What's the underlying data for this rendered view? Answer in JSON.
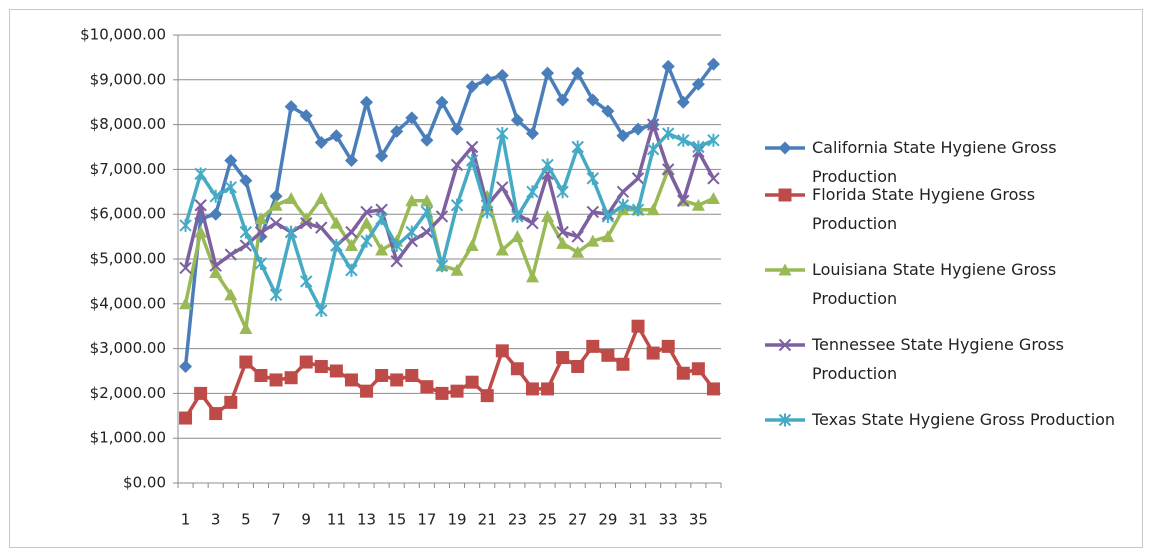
{
  "chart_data": {
    "type": "line",
    "categories": [
      "1",
      null,
      "3",
      null,
      "5",
      null,
      "7",
      null,
      "9",
      null,
      "11",
      null,
      "13",
      null,
      "15",
      null,
      "17",
      null,
      "19",
      null,
      "21",
      null,
      "23",
      null,
      "25",
      null,
      "27",
      null,
      "29",
      null,
      "31",
      null,
      "33",
      null,
      "35",
      null
    ],
    "ylim": [
      0,
      10000
    ],
    "yticks": [
      {
        "value": 0,
        "label": "$0.00"
      },
      {
        "value": 1000,
        "label": "$1,000.00"
      },
      {
        "value": 2000,
        "label": "$2,000.00"
      },
      {
        "value": 3000,
        "label": "$3,000.00"
      },
      {
        "value": 4000,
        "label": "$4,000.00"
      },
      {
        "value": 5000,
        "label": "$5,000.00"
      },
      {
        "value": 6000,
        "label": "$6,000.00"
      },
      {
        "value": 7000,
        "label": "$7,000.00"
      },
      {
        "value": 8000,
        "label": "$8,000.00"
      },
      {
        "value": 9000,
        "label": "$9,000.00"
      },
      {
        "value": 10000,
        "label": "$10,000.00"
      }
    ],
    "grid": true,
    "legend": "right",
    "series": [
      {
        "name": "California State Hygiene Gross Production",
        "color": "#4a7ebb",
        "marker": "diamond",
        "values": [
          2600,
          5900,
          6000,
          7200,
          6750,
          5500,
          6400,
          8400,
          8200,
          7600,
          7750,
          7200,
          8500,
          7300,
          7850,
          8150,
          7650,
          8500,
          7900,
          8850,
          9000,
          9100,
          8100,
          7800,
          9150,
          8550,
          9150,
          8550,
          8300,
          7750,
          7900,
          8000,
          9300,
          8500,
          8900,
          9350
        ]
      },
      {
        "name": "Florida State Hygiene Gross Production",
        "color": "#be4b48",
        "marker": "square",
        "values": [
          1450,
          2000,
          1550,
          1800,
          2700,
          2400,
          2300,
          2350,
          2700,
          2600,
          2500,
          2300,
          2050,
          2400,
          2300,
          2400,
          2150,
          2000,
          2050,
          2250,
          1950,
          2950,
          2550,
          2100,
          2100,
          2800,
          2600,
          3050,
          2850,
          2650,
          3500,
          2900,
          3050,
          2450,
          2550,
          2100
        ]
      },
      {
        "name": "Louisiana State Hygiene Gross Production",
        "color": "#98b954",
        "marker": "triangle",
        "values": [
          4000,
          5600,
          4700,
          4200,
          3450,
          5900,
          6200,
          6350,
          5900,
          6350,
          5800,
          5300,
          5800,
          5200,
          5400,
          6300,
          6300,
          4850,
          4750,
          5300,
          6400,
          5200,
          5500,
          4600,
          5950,
          5350,
          5150,
          5400,
          5500,
          6100,
          6100,
          6100,
          7000,
          6300,
          6200,
          6350
        ]
      },
      {
        "name": "Tennessee State Hygiene Gross Production",
        "color": "#7d60a0",
        "marker": "x",
        "values": [
          4800,
          6200,
          4850,
          5100,
          5300,
          5600,
          5800,
          5600,
          5800,
          5700,
          5300,
          5600,
          6050,
          6100,
          4950,
          5400,
          5600,
          5950,
          7100,
          7500,
          6200,
          6600,
          6000,
          5800,
          6900,
          5600,
          5500,
          6050,
          6000,
          6500,
          6800,
          8000,
          7000,
          6300,
          7400,
          6800
        ]
      },
      {
        "name": "Texas State Hygiene Gross Production",
        "color": "#46aac5",
        "marker": "star",
        "values": [
          5750,
          6900,
          6400,
          6600,
          5600,
          4900,
          4200,
          5600,
          4500,
          3850,
          5300,
          4750,
          5400,
          5900,
          5300,
          5600,
          6050,
          4850,
          6200,
          7200,
          6050,
          7800,
          5950,
          6500,
          7100,
          6500,
          7500,
          6800,
          5950,
          6200,
          6100,
          7450,
          7800,
          7650,
          7500,
          7650
        ]
      }
    ]
  }
}
